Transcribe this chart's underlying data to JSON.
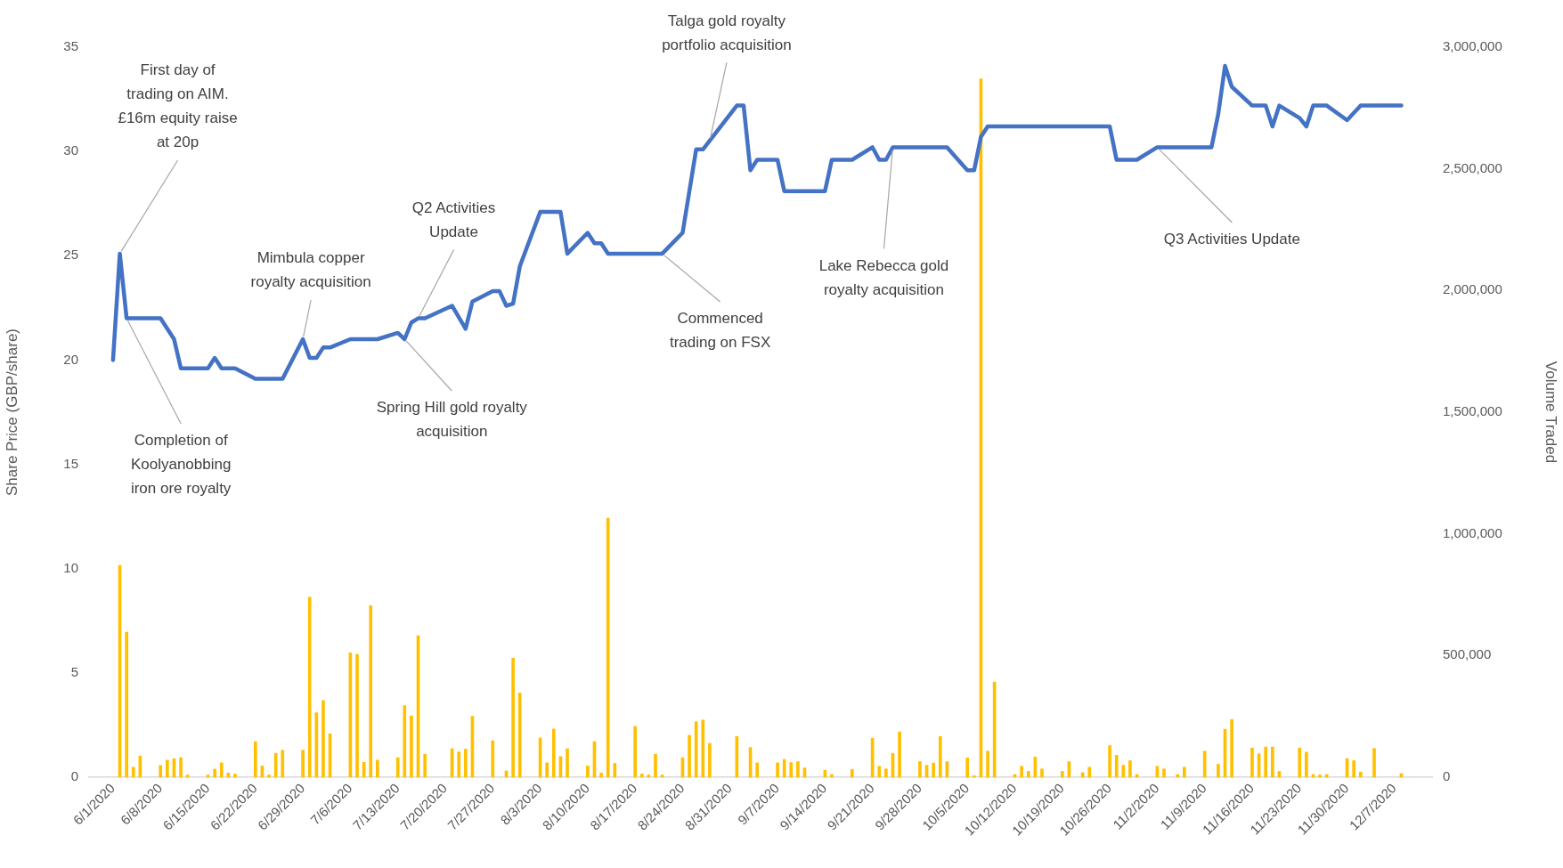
{
  "chart_data": {
    "type": "line",
    "ylabel": "Share Price (GBP/share)",
    "y2label": "Volume Traded",
    "xlim": [
      "2020-06-01",
      "2020-12-09"
    ],
    "xticks": [
      {
        "value": "2020-06-01",
        "label": "6/1/2020"
      },
      {
        "value": "2020-06-08",
        "label": "6/8/2020"
      },
      {
        "value": "2020-06-15",
        "label": "6/15/2020"
      },
      {
        "value": "2020-06-22",
        "label": "6/22/2020"
      },
      {
        "value": "2020-06-29",
        "label": "6/29/2020"
      },
      {
        "value": "2020-07-06",
        "label": "7/6/2020"
      },
      {
        "value": "2020-07-13",
        "label": "7/13/2020"
      },
      {
        "value": "2020-07-20",
        "label": "7/20/2020"
      },
      {
        "value": "2020-07-27",
        "label": "7/27/2020"
      },
      {
        "value": "2020-08-03",
        "label": "8/3/2020"
      },
      {
        "value": "2020-08-10",
        "label": "8/10/2020"
      },
      {
        "value": "2020-08-17",
        "label": "8/17/2020"
      },
      {
        "value": "2020-08-24",
        "label": "8/24/2020"
      },
      {
        "value": "2020-08-31",
        "label": "8/31/2020"
      },
      {
        "value": "2020-09-07",
        "label": "9/7/2020"
      },
      {
        "value": "2020-09-14",
        "label": "9/14/2020"
      },
      {
        "value": "2020-09-21",
        "label": "9/21/2020"
      },
      {
        "value": "2020-09-28",
        "label": "9/28/2020"
      },
      {
        "value": "2020-10-05",
        "label": "10/5/2020"
      },
      {
        "value": "2020-10-12",
        "label": "10/12/2020"
      },
      {
        "value": "2020-10-19",
        "label": "10/19/2020"
      },
      {
        "value": "2020-10-26",
        "label": "10/26/2020"
      },
      {
        "value": "2020-11-02",
        "label": "11/2/2020"
      },
      {
        "value": "2020-11-09",
        "label": "11/9/2020"
      },
      {
        "value": "2020-11-16",
        "label": "11/16/2020"
      },
      {
        "value": "2020-11-23",
        "label": "11/23/2020"
      },
      {
        "value": "2020-11-30",
        "label": "11/30/2020"
      },
      {
        "value": "2020-12-07",
        "label": "12/7/2020"
      }
    ],
    "ylim": [
      0,
      35
    ],
    "yticks": [
      0,
      5,
      10,
      15,
      20,
      25,
      30,
      35
    ],
    "y2lim": [
      0,
      3000000
    ],
    "y2ticks": [
      {
        "value": 0,
        "label": "0"
      },
      {
        "value": 500000,
        "label": "500,000"
      },
      {
        "value": 1000000,
        "label": "1,000,000"
      },
      {
        "value": 1500000,
        "label": "1,500,000"
      },
      {
        "value": 2000000,
        "label": "2,000,000"
      },
      {
        "value": 2500000,
        "label": "2,500,000"
      },
      {
        "value": 3000000,
        "label": "3,000,000"
      }
    ],
    "series": [
      {
        "color": "#4472c4",
        "x": [
          "2020-06-01",
          "2020-06-02",
          "2020-06-03",
          "2020-06-08",
          "2020-06-10",
          "2020-06-11",
          "2020-06-15",
          "2020-06-16",
          "2020-06-17",
          "2020-06-19",
          "2020-06-22",
          "2020-06-26",
          "2020-06-29",
          "2020-06-30",
          "2020-07-01",
          "2020-07-02",
          "2020-07-03",
          "2020-07-06",
          "2020-07-10",
          "2020-07-13",
          "2020-07-14",
          "2020-07-15",
          "2020-07-16",
          "2020-07-17",
          "2020-07-21",
          "2020-07-23",
          "2020-07-24",
          "2020-07-27",
          "2020-07-28",
          "2020-07-29",
          "2020-07-30",
          "2020-07-31",
          "2020-08-03",
          "2020-08-06",
          "2020-08-07",
          "2020-08-10",
          "2020-08-11",
          "2020-08-12",
          "2020-08-13",
          "2020-08-21",
          "2020-08-24",
          "2020-08-26",
          "2020-08-27",
          "2020-09-01",
          "2020-09-02",
          "2020-09-03",
          "2020-09-04",
          "2020-09-07",
          "2020-09-08",
          "2020-09-14",
          "2020-09-15",
          "2020-09-18",
          "2020-09-21",
          "2020-09-22",
          "2020-09-23",
          "2020-09-24",
          "2020-10-02",
          "2020-10-05",
          "2020-10-06",
          "2020-10-07",
          "2020-10-08",
          "2020-10-26",
          "2020-10-27",
          "2020-10-30",
          "2020-11-02",
          "2020-11-10",
          "2020-11-11",
          "2020-11-12",
          "2020-11-13",
          "2020-11-16",
          "2020-11-18",
          "2020-11-19",
          "2020-11-20",
          "2020-11-23",
          "2020-11-24",
          "2020-11-25",
          "2020-11-27",
          "2020-11-30",
          "2020-12-02",
          "2020-12-08"
        ],
        "values": [
          20.0,
          25.1,
          22.0,
          22.0,
          21.0,
          19.6,
          19.6,
          20.1,
          19.6,
          19.6,
          19.1,
          19.1,
          21.0,
          20.1,
          20.1,
          20.6,
          20.6,
          21.0,
          21.0,
          21.3,
          21.0,
          21.8,
          22.0,
          22.0,
          22.6,
          21.5,
          22.8,
          23.3,
          23.3,
          22.6,
          22.7,
          24.5,
          27.1,
          27.1,
          25.1,
          26.1,
          25.6,
          25.6,
          25.1,
          25.1,
          26.1,
          30.1,
          30.1,
          32.2,
          32.2,
          29.1,
          29.6,
          29.6,
          28.1,
          28.1,
          29.6,
          29.6,
          30.2,
          29.6,
          29.6,
          30.2,
          30.2,
          29.1,
          29.1,
          30.7,
          31.2,
          31.2,
          29.6,
          29.6,
          30.2,
          30.2,
          31.8,
          34.1,
          33.1,
          32.2,
          32.2,
          31.2,
          32.2,
          31.6,
          31.2,
          32.2,
          32.2,
          31.5,
          32.2,
          32.2
        ]
      },
      {
        "type": "bar",
        "axis": "y2",
        "color": "#ffc000",
        "x": [
          "2020-06-02",
          "2020-06-03",
          "2020-06-04",
          "2020-06-05",
          "2020-06-08",
          "2020-06-09",
          "2020-06-10",
          "2020-06-11",
          "2020-06-12",
          "2020-06-15",
          "2020-06-16",
          "2020-06-17",
          "2020-06-18",
          "2020-06-19",
          "2020-06-22",
          "2020-06-23",
          "2020-06-24",
          "2020-06-25",
          "2020-06-26",
          "2020-06-29",
          "2020-06-30",
          "2020-07-01",
          "2020-07-02",
          "2020-07-03",
          "2020-07-06",
          "2020-07-07",
          "2020-07-08",
          "2020-07-09",
          "2020-07-10",
          "2020-07-13",
          "2020-07-14",
          "2020-07-15",
          "2020-07-16",
          "2020-07-17",
          "2020-07-21",
          "2020-07-22",
          "2020-07-23",
          "2020-07-24",
          "2020-07-27",
          "2020-07-29",
          "2020-07-30",
          "2020-07-31",
          "2020-08-03",
          "2020-08-04",
          "2020-08-05",
          "2020-08-06",
          "2020-08-07",
          "2020-08-10",
          "2020-08-11",
          "2020-08-12",
          "2020-08-13",
          "2020-08-14",
          "2020-08-17",
          "2020-08-18",
          "2020-08-19",
          "2020-08-20",
          "2020-08-21",
          "2020-08-24",
          "2020-08-25",
          "2020-08-26",
          "2020-08-27",
          "2020-08-28",
          "2020-09-01",
          "2020-09-03",
          "2020-09-04",
          "2020-09-07",
          "2020-09-08",
          "2020-09-09",
          "2020-09-10",
          "2020-09-11",
          "2020-09-14",
          "2020-09-15",
          "2020-09-18",
          "2020-09-21",
          "2020-09-22",
          "2020-09-23",
          "2020-09-24",
          "2020-09-25",
          "2020-09-28",
          "2020-09-29",
          "2020-09-30",
          "2020-10-01",
          "2020-10-02",
          "2020-10-05",
          "2020-10-06",
          "2020-10-07",
          "2020-10-08",
          "2020-10-09",
          "2020-10-12",
          "2020-10-13",
          "2020-10-14",
          "2020-10-15",
          "2020-10-16",
          "2020-10-19",
          "2020-10-20",
          "2020-10-22",
          "2020-10-23",
          "2020-10-26",
          "2020-10-27",
          "2020-10-28",
          "2020-10-29",
          "2020-10-30",
          "2020-11-02",
          "2020-11-03",
          "2020-11-05",
          "2020-11-06",
          "2020-11-09",
          "2020-11-11",
          "2020-11-12",
          "2020-11-13",
          "2020-11-16",
          "2020-11-17",
          "2020-11-18",
          "2020-11-19",
          "2020-11-20",
          "2020-11-23",
          "2020-11-24",
          "2020-11-25",
          "2020-11-26",
          "2020-11-27",
          "2020-11-30",
          "2020-12-01",
          "2020-12-02",
          "2020-12-04",
          "2020-12-08"
        ],
        "values": [
          870000,
          596000,
          41000,
          87000,
          48000,
          70000,
          76000,
          80000,
          9000,
          9000,
          33000,
          59000,
          17000,
          13000,
          146000,
          46000,
          9000,
          98000,
          111000,
          111000,
          740000,
          265000,
          315000,
          178000,
          511000,
          505000,
          61000,
          705000,
          70000,
          80000,
          294000,
          252000,
          581000,
          94000,
          117000,
          104000,
          115000,
          250000,
          150000,
          26000,
          489000,
          346000,
          161000,
          59000,
          198000,
          85000,
          117000,
          46000,
          146000,
          17000,
          1064000,
          57000,
          209000,
          13000,
          9000,
          94000,
          9000,
          80000,
          172000,
          228000,
          235000,
          139000,
          167000,
          122000,
          59000,
          59000,
          73000,
          60000,
          64000,
          38000,
          28000,
          11000,
          32000,
          160000,
          45000,
          34000,
          98000,
          186000,
          64000,
          49000,
          58000,
          167000,
          64000,
          79000,
          6000,
          2870000,
          107000,
          391000,
          11000,
          45000,
          24000,
          83000,
          34000,
          24000,
          64000,
          19000,
          41000,
          130000,
          90000,
          49000,
          68000,
          11000,
          45000,
          34000,
          11000,
          41000,
          107000,
          53000,
          197000,
          237000,
          120000,
          96000,
          124000,
          124000,
          24000,
          120000,
          103000,
          11000,
          9000,
          11000,
          77000,
          68000,
          21000,
          118000,
          15000
        ]
      }
    ],
    "annotations": [
      {
        "text": "First day of\ntrading on AIM.\n£16m equity raise\nat 20p",
        "x": "2020-06-02",
        "y": 25.1
      },
      {
        "text": "Completion of\nKoolyanobbing\niron ore royalty",
        "x": "2020-06-03",
        "y": 22.0
      },
      {
        "text": "Mimbula copper\nroyalty acquisition",
        "x": "2020-06-29",
        "y": 21.0
      },
      {
        "text": "Q2 Activities\nUpdate",
        "x": "2020-07-16",
        "y": 22.0
      },
      {
        "text": "Spring Hill gold royalty\nacquisition",
        "x": "2020-07-14",
        "y": 21.0
      },
      {
        "text": "Talga gold royalty\nportfolio acquisition",
        "x": "2020-08-28",
        "y": 30.5
      },
      {
        "text": "Commenced\ntrading on FSX",
        "x": "2020-08-21",
        "y": 25.1
      },
      {
        "text": "Lake Rebecca gold\nroyalty acquisition",
        "x": "2020-09-24",
        "y": 30.2
      },
      {
        "text": "Q3 Activities Update",
        "x": "2020-11-02",
        "y": 30.2
      }
    ]
  }
}
